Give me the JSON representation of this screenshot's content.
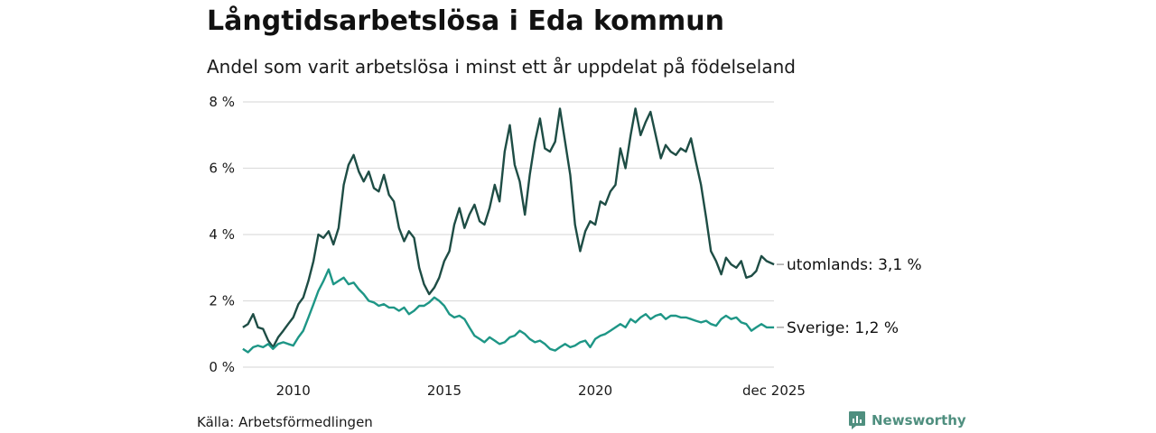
{
  "header": {
    "title": "Långtidsarbetslösa i Eda kommun",
    "subtitle": "Andel som varit arbetslösa i minst ett år uppdelat på födelseland"
  },
  "footer": {
    "source": "Källa: Arbetsförmedlingen",
    "brand": "Newsworthy"
  },
  "colors": {
    "utomlands": "#1e4d45",
    "sverige": "#1e9686",
    "grid": "#dddddd",
    "brand": "#4f8f7f"
  },
  "chart_data": {
    "type": "line",
    "title": "Långtidsarbetslösa i Eda kommun",
    "subtitle": "Andel som varit arbetslösa i minst ett år uppdelat på födelseland",
    "xlabel": "",
    "ylabel": "",
    "xlim": [
      2008.3333,
      2025.9167
    ],
    "ylim": [
      0,
      8
    ],
    "y_ticks": [
      0,
      2,
      4,
      6,
      8
    ],
    "y_tick_labels": [
      "0 %",
      "2 %",
      "4 %",
      "6 %",
      "8 %"
    ],
    "x_ticks": [
      2010,
      2015,
      2020,
      2025.9167
    ],
    "x_tick_labels": [
      "2010",
      "2015",
      "2020",
      "dec 2025"
    ],
    "grid": true,
    "series": [
      {
        "name": "utomlands",
        "label": "utomlands: 3,1 %",
        "color": "#1e4d45",
        "points": [
          [
            2008.33,
            1.2
          ],
          [
            2008.5,
            1.3
          ],
          [
            2008.67,
            1.6
          ],
          [
            2008.83,
            1.2
          ],
          [
            2009.0,
            1.15
          ],
          [
            2009.17,
            0.8
          ],
          [
            2009.33,
            0.6
          ],
          [
            2009.5,
            0.9
          ],
          [
            2009.67,
            1.1
          ],
          [
            2009.83,
            1.3
          ],
          [
            2010.0,
            1.5
          ],
          [
            2010.17,
            1.9
          ],
          [
            2010.33,
            2.1
          ],
          [
            2010.5,
            2.6
          ],
          [
            2010.67,
            3.2
          ],
          [
            2010.83,
            4.0
          ],
          [
            2011.0,
            3.9
          ],
          [
            2011.17,
            4.1
          ],
          [
            2011.33,
            3.7
          ],
          [
            2011.5,
            4.2
          ],
          [
            2011.67,
            5.5
          ],
          [
            2011.83,
            6.1
          ],
          [
            2012.0,
            6.4
          ],
          [
            2012.17,
            5.9
          ],
          [
            2012.33,
            5.6
          ],
          [
            2012.5,
            5.9
          ],
          [
            2012.67,
            5.4
          ],
          [
            2012.83,
            5.3
          ],
          [
            2013.0,
            5.8
          ],
          [
            2013.17,
            5.2
          ],
          [
            2013.33,
            5.0
          ],
          [
            2013.5,
            4.2
          ],
          [
            2013.67,
            3.8
          ],
          [
            2013.83,
            4.1
          ],
          [
            2014.0,
            3.9
          ],
          [
            2014.17,
            3.0
          ],
          [
            2014.33,
            2.5
          ],
          [
            2014.5,
            2.2
          ],
          [
            2014.67,
            2.4
          ],
          [
            2014.83,
            2.7
          ],
          [
            2015.0,
            3.2
          ],
          [
            2015.17,
            3.5
          ],
          [
            2015.33,
            4.3
          ],
          [
            2015.5,
            4.8
          ],
          [
            2015.67,
            4.2
          ],
          [
            2015.83,
            4.6
          ],
          [
            2016.0,
            4.9
          ],
          [
            2016.17,
            4.4
          ],
          [
            2016.33,
            4.3
          ],
          [
            2016.5,
            4.8
          ],
          [
            2016.67,
            5.5
          ],
          [
            2016.83,
            5.0
          ],
          [
            2017.0,
            6.5
          ],
          [
            2017.17,
            7.3
          ],
          [
            2017.33,
            6.1
          ],
          [
            2017.5,
            5.6
          ],
          [
            2017.67,
            4.6
          ],
          [
            2017.83,
            5.8
          ],
          [
            2018.0,
            6.8
          ],
          [
            2018.17,
            7.5
          ],
          [
            2018.33,
            6.6
          ],
          [
            2018.5,
            6.5
          ],
          [
            2018.67,
            6.8
          ],
          [
            2018.83,
            7.8
          ],
          [
            2019.0,
            6.8
          ],
          [
            2019.17,
            5.8
          ],
          [
            2019.33,
            4.3
          ],
          [
            2019.5,
            3.5
          ],
          [
            2019.67,
            4.1
          ],
          [
            2019.83,
            4.4
          ],
          [
            2020.0,
            4.3
          ],
          [
            2020.17,
            5.0
          ],
          [
            2020.33,
            4.9
          ],
          [
            2020.5,
            5.3
          ],
          [
            2020.67,
            5.5
          ],
          [
            2020.83,
            6.6
          ],
          [
            2021.0,
            6.0
          ],
          [
            2021.17,
            7.0
          ],
          [
            2021.33,
            7.8
          ],
          [
            2021.5,
            7.0
          ],
          [
            2021.67,
            7.4
          ],
          [
            2021.83,
            7.7
          ],
          [
            2022.0,
            7.0
          ],
          [
            2022.17,
            6.3
          ],
          [
            2022.33,
            6.7
          ],
          [
            2022.5,
            6.5
          ],
          [
            2022.67,
            6.4
          ],
          [
            2022.83,
            6.6
          ],
          [
            2023.0,
            6.5
          ],
          [
            2023.17,
            6.9
          ],
          [
            2023.33,
            6.2
          ],
          [
            2023.5,
            5.5
          ],
          [
            2023.67,
            4.5
          ],
          [
            2023.83,
            3.5
          ],
          [
            2024.0,
            3.2
          ],
          [
            2024.17,
            2.8
          ],
          [
            2024.33,
            3.3
          ],
          [
            2024.5,
            3.1
          ],
          [
            2024.67,
            3.0
          ],
          [
            2024.83,
            3.2
          ],
          [
            2025.0,
            2.7
          ],
          [
            2025.17,
            2.75
          ],
          [
            2025.33,
            2.9
          ],
          [
            2025.5,
            3.35
          ],
          [
            2025.67,
            3.2
          ],
          [
            2025.92,
            3.1
          ]
        ]
      },
      {
        "name": "Sverige",
        "label": "Sverige: 1,2 %",
        "color": "#1e9686",
        "points": [
          [
            2008.33,
            0.55
          ],
          [
            2008.5,
            0.45
          ],
          [
            2008.67,
            0.6
          ],
          [
            2008.83,
            0.65
          ],
          [
            2009.0,
            0.6
          ],
          [
            2009.17,
            0.7
          ],
          [
            2009.33,
            0.55
          ],
          [
            2009.5,
            0.7
          ],
          [
            2009.67,
            0.75
          ],
          [
            2009.83,
            0.7
          ],
          [
            2010.0,
            0.65
          ],
          [
            2010.17,
            0.9
          ],
          [
            2010.33,
            1.1
          ],
          [
            2010.5,
            1.5
          ],
          [
            2010.67,
            1.9
          ],
          [
            2010.83,
            2.3
          ],
          [
            2011.0,
            2.6
          ],
          [
            2011.17,
            2.95
          ],
          [
            2011.33,
            2.5
          ],
          [
            2011.5,
            2.6
          ],
          [
            2011.67,
            2.7
          ],
          [
            2011.83,
            2.5
          ],
          [
            2012.0,
            2.55
          ],
          [
            2012.17,
            2.35
          ],
          [
            2012.33,
            2.2
          ],
          [
            2012.5,
            2.0
          ],
          [
            2012.67,
            1.95
          ],
          [
            2012.83,
            1.85
          ],
          [
            2013.0,
            1.9
          ],
          [
            2013.17,
            1.8
          ],
          [
            2013.33,
            1.8
          ],
          [
            2013.5,
            1.7
          ],
          [
            2013.67,
            1.8
          ],
          [
            2013.83,
            1.6
          ],
          [
            2014.0,
            1.7
          ],
          [
            2014.17,
            1.85
          ],
          [
            2014.33,
            1.85
          ],
          [
            2014.5,
            1.95
          ],
          [
            2014.67,
            2.1
          ],
          [
            2014.83,
            2.0
          ],
          [
            2015.0,
            1.85
          ],
          [
            2015.17,
            1.6
          ],
          [
            2015.33,
            1.5
          ],
          [
            2015.5,
            1.55
          ],
          [
            2015.67,
            1.45
          ],
          [
            2015.83,
            1.2
          ],
          [
            2016.0,
            0.95
          ],
          [
            2016.17,
            0.85
          ],
          [
            2016.33,
            0.75
          ],
          [
            2016.5,
            0.9
          ],
          [
            2016.67,
            0.8
          ],
          [
            2016.83,
            0.7
          ],
          [
            2017.0,
            0.75
          ],
          [
            2017.17,
            0.9
          ],
          [
            2017.33,
            0.95
          ],
          [
            2017.5,
            1.1
          ],
          [
            2017.67,
            1.0
          ],
          [
            2017.83,
            0.85
          ],
          [
            2018.0,
            0.75
          ],
          [
            2018.17,
            0.8
          ],
          [
            2018.33,
            0.7
          ],
          [
            2018.5,
            0.55
          ],
          [
            2018.67,
            0.5
          ],
          [
            2018.83,
            0.6
          ],
          [
            2019.0,
            0.7
          ],
          [
            2019.17,
            0.6
          ],
          [
            2019.33,
            0.65
          ],
          [
            2019.5,
            0.75
          ],
          [
            2019.67,
            0.8
          ],
          [
            2019.83,
            0.6
          ],
          [
            2020.0,
            0.85
          ],
          [
            2020.17,
            0.95
          ],
          [
            2020.33,
            1.0
          ],
          [
            2020.5,
            1.1
          ],
          [
            2020.67,
            1.2
          ],
          [
            2020.83,
            1.3
          ],
          [
            2021.0,
            1.2
          ],
          [
            2021.17,
            1.45
          ],
          [
            2021.33,
            1.35
          ],
          [
            2021.5,
            1.5
          ],
          [
            2021.67,
            1.6
          ],
          [
            2021.83,
            1.45
          ],
          [
            2022.0,
            1.55
          ],
          [
            2022.17,
            1.6
          ],
          [
            2022.33,
            1.45
          ],
          [
            2022.5,
            1.55
          ],
          [
            2022.67,
            1.55
          ],
          [
            2022.83,
            1.5
          ],
          [
            2023.0,
            1.5
          ],
          [
            2023.17,
            1.45
          ],
          [
            2023.33,
            1.4
          ],
          [
            2023.5,
            1.35
          ],
          [
            2023.67,
            1.4
          ],
          [
            2023.83,
            1.3
          ],
          [
            2024.0,
            1.25
          ],
          [
            2024.17,
            1.45
          ],
          [
            2024.33,
            1.55
          ],
          [
            2024.5,
            1.45
          ],
          [
            2024.67,
            1.5
          ],
          [
            2024.83,
            1.35
          ],
          [
            2025.0,
            1.3
          ],
          [
            2025.17,
            1.1
          ],
          [
            2025.33,
            1.2
          ],
          [
            2025.5,
            1.3
          ],
          [
            2025.67,
            1.2
          ],
          [
            2025.92,
            1.2
          ]
        ]
      }
    ]
  }
}
